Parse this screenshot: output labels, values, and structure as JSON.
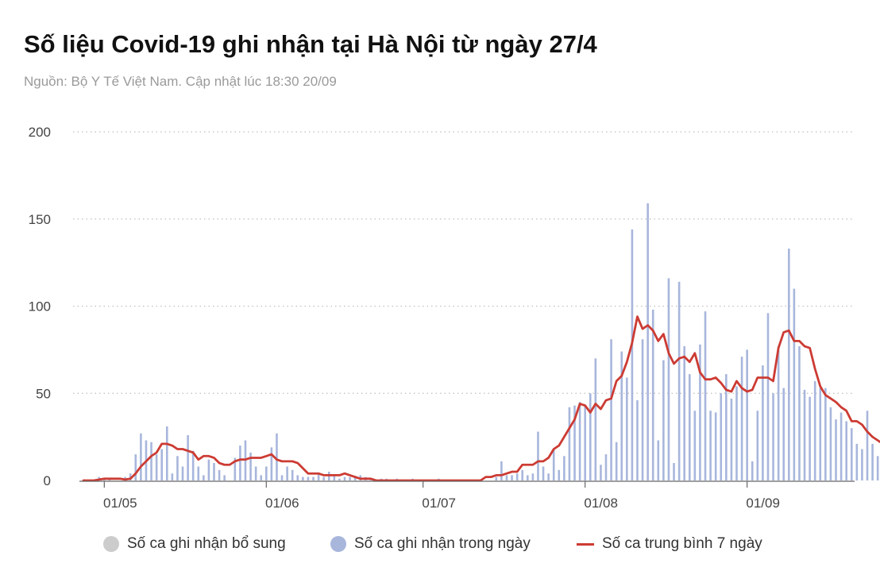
{
  "title": "Số liệu Covid-19 ghi nhận tại Hà Nội từ ngày 27/4",
  "subtitle": "Nguồn: Bộ Y Tế Việt Nam. Cập nhật lúc 18:30 20/09",
  "chart_data": {
    "type": "bar",
    "x_ticks": [
      "01/05",
      "01/06",
      "01/07",
      "01/08",
      "01/09"
    ],
    "x_tick_day_index": [
      4,
      35,
      65,
      96,
      127
    ],
    "start_date": "27/04",
    "ylim": [
      0,
      200
    ],
    "y_ticks": [
      0,
      50,
      100,
      150,
      200
    ],
    "grid": true,
    "legend": "bottom",
    "colors": {
      "supplement": "#cccccc",
      "daily": "#a8b6dc",
      "avg": "#cc3b33"
    },
    "series": [
      {
        "name": "Số ca ghi nhận bổ sung",
        "kind": "bar",
        "values": []
      },
      {
        "name": "Số ca ghi nhận trong ngày",
        "kind": "bar",
        "values": [
          0,
          0,
          0,
          2,
          1,
          1,
          0,
          0,
          2,
          4,
          15,
          27,
          23,
          22,
          15,
          18,
          31,
          4,
          14,
          8,
          26,
          17,
          8,
          3,
          12,
          10,
          6,
          3,
          0,
          13,
          20,
          23,
          16,
          8,
          3,
          8,
          19,
          27,
          3,
          8,
          6,
          3,
          2,
          2,
          2,
          4,
          2,
          5,
          3,
          1,
          2,
          2,
          2,
          3,
          2,
          1,
          0,
          1,
          1,
          0,
          1,
          0,
          0,
          1,
          0,
          0,
          0,
          0,
          1,
          0,
          0,
          0,
          0,
          0,
          0,
          0,
          0,
          0,
          0,
          2,
          11,
          3,
          3,
          4,
          6,
          3,
          4,
          28,
          8,
          4,
          18,
          6,
          14,
          42,
          43,
          45,
          43,
          50,
          70,
          9,
          15,
          81,
          22,
          74,
          59,
          144,
          46,
          81,
          159,
          98,
          23,
          69,
          116,
          10,
          114,
          77,
          61,
          40,
          78,
          97,
          40,
          39,
          50,
          61,
          47,
          54,
          71,
          75,
          11,
          40,
          66,
          96,
          50,
          77,
          53,
          133,
          110,
          77,
          52,
          48,
          57,
          53,
          53,
          42,
          35,
          39,
          34,
          30,
          21,
          18,
          40,
          21,
          14,
          15,
          15,
          19,
          19,
          8
        ]
      },
      {
        "name": "Số ca trung bình 7 ngày",
        "kind": "line",
        "values": [
          0,
          0,
          0,
          0.5,
          1,
          1,
          1,
          1,
          0.5,
          1,
          4,
          8,
          11,
          14,
          16,
          21,
          21,
          20,
          18,
          18,
          17,
          16,
          12,
          14,
          14,
          13,
          10,
          9,
          9,
          11,
          12,
          12,
          13,
          13,
          13,
          14,
          15,
          12,
          11,
          11,
          11,
          10,
          7,
          4,
          4,
          4,
          3,
          3,
          3,
          3,
          4,
          3,
          2,
          1,
          1,
          1,
          0,
          0,
          0,
          0,
          0,
          0,
          0,
          0,
          0,
          0,
          0,
          0,
          0,
          0,
          0,
          0,
          0,
          0,
          0,
          0,
          0,
          2,
          2,
          3,
          3,
          4,
          5,
          5,
          9,
          9,
          9,
          11,
          11,
          13,
          18,
          20,
          25,
          30,
          35,
          44,
          43,
          39,
          44,
          41,
          46,
          47,
          57,
          60,
          68,
          79,
          94,
          87,
          89,
          86,
          80,
          84,
          73,
          67,
          70,
          71,
          68,
          73,
          62,
          58,
          58,
          59,
          56,
          52,
          51,
          57,
          53,
          51,
          52,
          59,
          59,
          59,
          57,
          76,
          85,
          86,
          80,
          80,
          77,
          76,
          64,
          54,
          49,
          47,
          45,
          42,
          40,
          34,
          34,
          32,
          28,
          25,
          23,
          21,
          21,
          16
        ]
      }
    ]
  }
}
